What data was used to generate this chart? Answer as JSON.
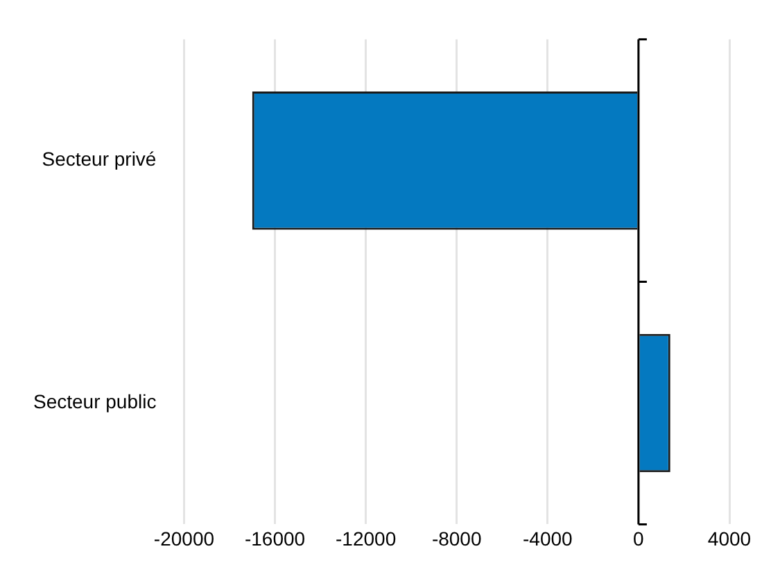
{
  "chart_data": {
    "type": "bar",
    "orientation": "horizontal",
    "categories": [
      "Secteur privé",
      "Secteur public"
    ],
    "series": [
      {
        "color": "#0479c0",
        "values": [
          -17000,
          1400
        ]
      }
    ],
    "xlim": [
      -20000,
      4000
    ],
    "xticks": [
      -20000,
      -16000,
      -12000,
      -8000,
      -4000,
      0,
      4000
    ],
    "grid": "x",
    "legend": false
  }
}
